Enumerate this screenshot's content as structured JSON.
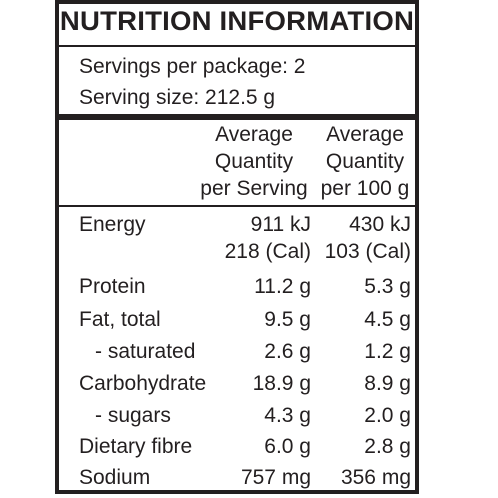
{
  "panel": {
    "title": "NUTRITION INFORMATION",
    "servings_per_package": "Servings per package: 2",
    "serving_size": "Serving size: 212.5 g"
  },
  "columns": {
    "per_serving": [
      "Average",
      "Quantity",
      "per Serving"
    ],
    "per_100g": [
      "Average",
      "Quantity",
      "per 100 g"
    ]
  },
  "rows": {
    "energy": {
      "label": "Energy",
      "per_serving_kj": "911 kJ",
      "per_serving_cal": "218 (Cal)",
      "per_100g_kj": "430 kJ",
      "per_100g_cal": "103 (Cal)"
    },
    "protein": {
      "label": "Protein",
      "per_serving": "11.2 g",
      "per_100g": "5.3 g"
    },
    "fat_total": {
      "label": "Fat, total",
      "per_serving": "9.5 g",
      "per_100g": "4.5 g"
    },
    "saturated": {
      "label": "- saturated",
      "per_serving": "2.6 g",
      "per_100g": "1.2 g"
    },
    "carbohydrate": {
      "label": "Carbohydrate",
      "per_serving": "18.9 g",
      "per_100g": "8.9 g"
    },
    "sugars": {
      "label": "- sugars",
      "per_serving": "4.3 g",
      "per_100g": "2.0 g"
    },
    "dietary_fibre": {
      "label": "Dietary fibre",
      "per_serving": "6.0 g",
      "per_100g": "2.8 g"
    },
    "sodium": {
      "label": "Sodium",
      "per_serving": "757 mg",
      "per_100g": "356 mg"
    }
  }
}
